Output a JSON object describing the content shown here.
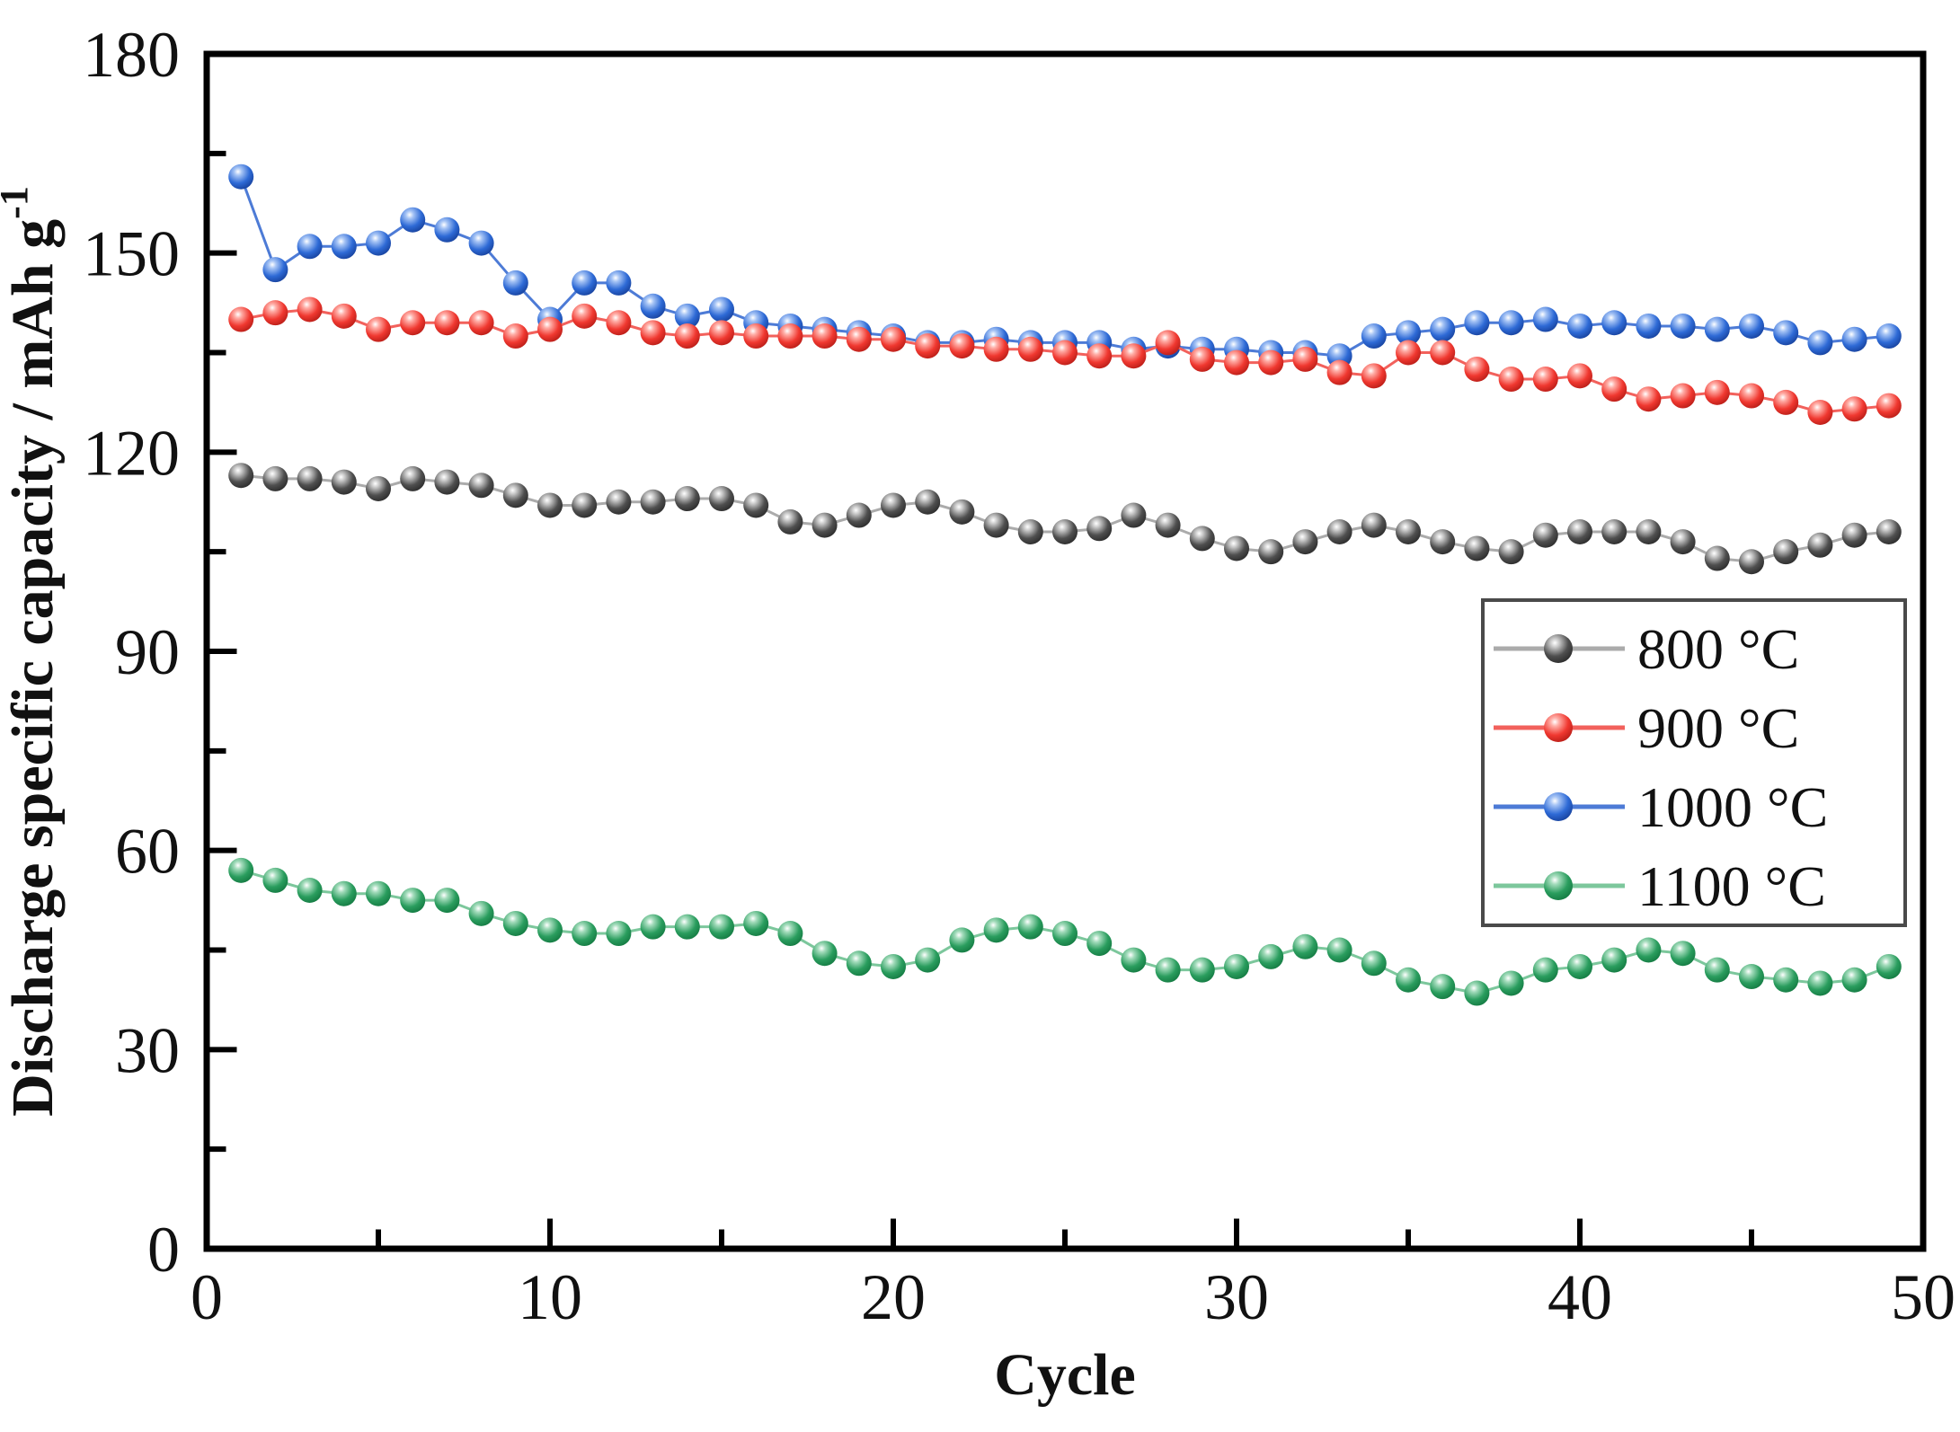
{
  "figure": {
    "background": "#ffffff",
    "frame_color": "#000000",
    "text_color": "#111111"
  },
  "chart_data": {
    "type": "scatter",
    "title": "",
    "xlabel": "Cycle",
    "ylabel_main": "Discharge specific capacity / mAh g",
    "ylabel_superscript": "-1",
    "xlim": [
      0,
      50
    ],
    "ylim": [
      0,
      180
    ],
    "x_major_ticks": [
      0,
      10,
      20,
      30,
      40,
      50
    ],
    "x_minor_ticks": [
      5,
      15,
      25,
      35,
      45
    ],
    "y_major_ticks": [
      0,
      30,
      60,
      90,
      120,
      150,
      180
    ],
    "y_minor_ticks": [
      15,
      45,
      75,
      105,
      135,
      165
    ],
    "grid": false,
    "legend_position": "inside-right-middle",
    "marker_style": "3d-sphere",
    "cycles_start": 1,
    "series": [
      {
        "name": "800 °C",
        "slug": "800c",
        "marker_color": "#4f4f4f",
        "marker_light": "#c9c9c9",
        "marker_dark": "#2b2b2b",
        "line_color": "#ababab",
        "values": [
          116.5,
          116,
          116,
          115.5,
          114.5,
          116,
          115.5,
          115,
          113.5,
          112,
          112,
          112.5,
          112.5,
          113,
          113,
          112,
          109.5,
          109,
          110.5,
          112,
          112.5,
          111,
          109,
          108,
          108,
          108.5,
          110.5,
          109,
          107,
          105.5,
          105,
          106.5,
          108,
          109,
          108,
          106.5,
          105.5,
          105,
          107.5,
          108,
          108,
          108,
          106.5,
          104,
          103.5,
          105,
          106,
          107.5,
          108
        ]
      },
      {
        "name": "900 °C",
        "slug": "900c",
        "marker_color": "#f03830",
        "marker_light": "#ffada6",
        "marker_dark": "#b81d17",
        "line_color": "#f2615c",
        "values": [
          140,
          141,
          141.5,
          140.5,
          138.5,
          139.5,
          139.5,
          139.5,
          137.5,
          138.5,
          140.5,
          139.5,
          138,
          137.5,
          138,
          137.5,
          137.5,
          137.5,
          137,
          137,
          136,
          136,
          135.5,
          135.5,
          135,
          134.5,
          134.5,
          136.5,
          134,
          133.5,
          133.5,
          134,
          132,
          131.5,
          135,
          135,
          132.5,
          131,
          131,
          131.5,
          129.5,
          128,
          128.5,
          129,
          128.5,
          127.5,
          126,
          126.5,
          127
        ]
      },
      {
        "name": "1000 °C",
        "slug": "1000c",
        "marker_color": "#2e6ad6",
        "marker_light": "#a6c4f5",
        "marker_dark": "#17419c",
        "line_color": "#4d7bd6",
        "values": [
          161.5,
          147.5,
          151,
          151,
          151.5,
          155,
          153.5,
          151.5,
          145.5,
          140,
          145.5,
          145.5,
          142,
          140.5,
          141.5,
          139.5,
          139,
          138.5,
          138,
          137.5,
          136.5,
          136.5,
          137,
          136.5,
          136.5,
          136.5,
          135.5,
          136,
          135.5,
          135.5,
          135,
          135,
          134.5,
          137.5,
          138,
          138.5,
          139.5,
          139.5,
          140,
          139,
          139.5,
          139,
          139,
          138.5,
          139,
          138,
          136.5,
          137,
          137.5
        ]
      },
      {
        "name": "1100 °C",
        "slug": "1100c",
        "marker_color": "#2a9d5e",
        "marker_light": "#a4dcbc",
        "marker_dark": "#147a42",
        "line_color": "#7cc79c",
        "values": [
          57,
          55.5,
          54,
          53.5,
          53.5,
          52.5,
          52.5,
          50.5,
          49,
          48,
          47.5,
          47.5,
          48.5,
          48.5,
          48.5,
          49,
          47.5,
          44.5,
          43,
          42.5,
          43.5,
          46.5,
          48,
          48.5,
          47.5,
          46,
          43.5,
          42,
          42,
          42.5,
          44,
          45.5,
          45,
          43,
          40.5,
          39.5,
          38.5,
          40,
          42,
          42.5,
          43.5,
          45,
          44.5,
          42,
          41,
          40.5,
          40,
          40.5,
          42.5
        ]
      }
    ]
  }
}
